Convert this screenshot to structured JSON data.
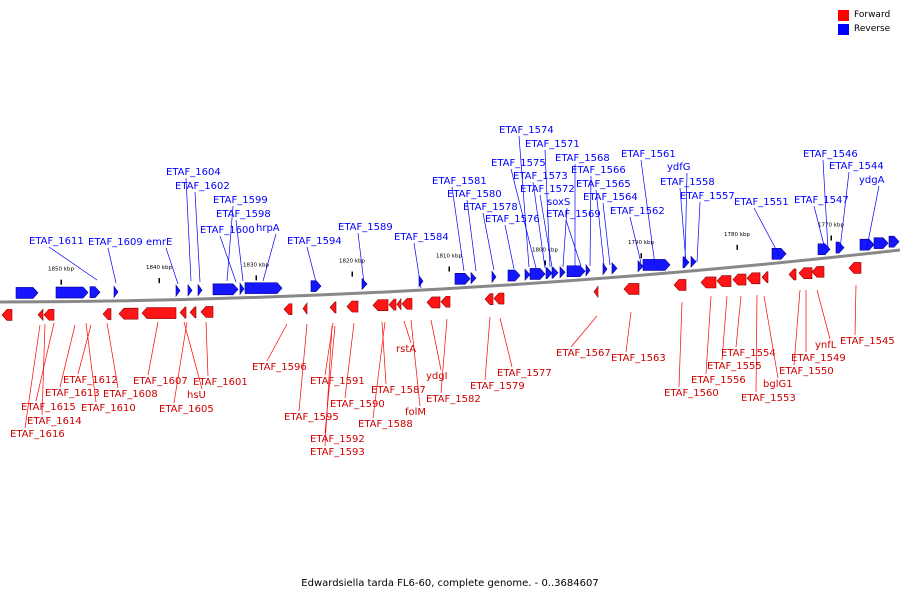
{
  "legend": [
    {
      "label": "Forward",
      "color": "#ff0000"
    },
    {
      "label": "Reverse",
      "color": "#0000ff"
    }
  ],
  "caption": "Edwardsiella tarda FL6-60, complete genome. - 0..3684607",
  "axis_ticks": [
    "1850 kbp",
    "1840 kbp",
    "1830 kbp",
    "1820 kbp",
    "1810 kbp",
    "1800 kbp",
    "1790 kbp",
    "1780 kbp",
    "1770 kbp"
  ],
  "reverse_labels": [
    "ETAF_1611",
    "ETAF_1609",
    "emrE",
    "ETAF_1604",
    "ETAF_1602",
    "ETAF_1599",
    "ETAF_1598",
    "ETAF_1600",
    "hrpA",
    "ETAF_1594",
    "ETAF_1589",
    "ETAF_1584",
    "ETAF_1581",
    "ETAF_1580",
    "ETAF_1578",
    "ETAF_1576",
    "ETAF_1574",
    "ETAF_1571",
    "ETAF_1575",
    "ETAF_1573",
    "ETAF_1572",
    "soxS",
    "ETAF_1568",
    "ETAF_1566",
    "ETAF_1565",
    "ETAF_1564",
    "ETAF_1569",
    "ETAF_1561",
    "ydfG",
    "ETAF_1562",
    "ETAF_1558",
    "ETAF_1557",
    "ETAF_1551",
    "ETAF_1546",
    "ETAF_1544",
    "ydgA",
    "ETAF_1547"
  ],
  "forward_labels": [
    "ETAF_1612",
    "ETAF_1613",
    "ETAF_1615",
    "ETAF_1614",
    "ETAF_1616",
    "ETAF_1608",
    "ETAF_1610",
    "ETAF_1607",
    "hsU",
    "ETAF_1605",
    "ETAF_1601",
    "ETAF_1596",
    "ETAF_1595",
    "ETAF_1591",
    "ETAF_1590",
    "ETAF_1592",
    "ETAF_1593",
    "rstA",
    "ETAF_1587",
    "folM",
    "ETAF_1588",
    "ydgI",
    "ETAF_1582",
    "ETAF_1579",
    "ETAF_1577",
    "ETAF_1567",
    "ETAF_1563",
    "ETAF_1560",
    "ETAF_1556",
    "ETAF_1555",
    "ETAF_1554",
    "bglG1",
    "ETAF_1553",
    "ETAF_1550",
    "ETAF_1549",
    "ynfL",
    "ETAF_1545"
  ]
}
